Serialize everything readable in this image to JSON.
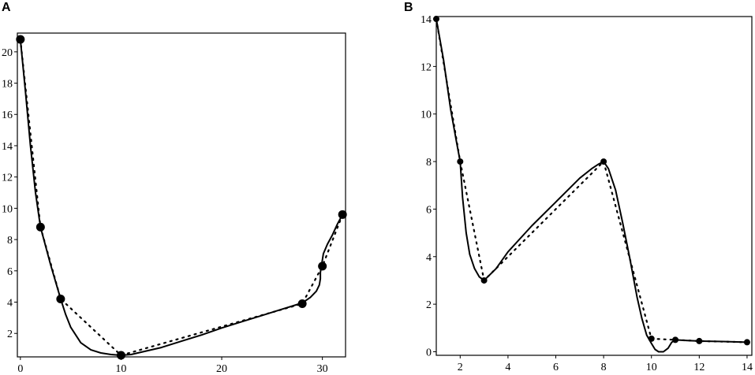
{
  "figure": {
    "panel_labels": [
      "A",
      "B"
    ]
  },
  "colors": {
    "ink": "#000000",
    "background": "#ffffff"
  },
  "chart_data": [
    {
      "id": "A",
      "type": "line",
      "title": "",
      "xlabel": "",
      "ylabel": "",
      "xlim": [
        -0.3,
        32.3
      ],
      "ylim": [
        0.5,
        21.2
      ],
      "xticks": [
        0,
        10,
        20,
        30
      ],
      "yticks": [
        2,
        4,
        6,
        8,
        10,
        12,
        14,
        16,
        18,
        20
      ],
      "xtick_labels": [
        "0",
        "10",
        "20",
        "30"
      ],
      "ytick_labels": [
        "2",
        "4",
        "6",
        "8",
        "10",
        "12",
        "14",
        "16",
        "18",
        "20"
      ],
      "grid": false,
      "points": {
        "x": [
          0,
          2,
          4,
          10,
          28,
          30,
          32
        ],
        "y": [
          20.8,
          8.8,
          4.2,
          0.6,
          3.9,
          6.3,
          9.6
        ]
      },
      "series": [
        {
          "style": "dotted",
          "x": [
            0,
            2,
            4,
            10,
            28,
            30,
            32
          ],
          "y": [
            20.8,
            8.8,
            4.2,
            0.6,
            3.9,
            6.3,
            9.6
          ]
        },
        {
          "style": "solid",
          "x": [
            0,
            0.5,
            1,
            1.5,
            2,
            2.5,
            3,
            3.5,
            4,
            4.5,
            5,
            6,
            7,
            8,
            9,
            10,
            11,
            12,
            14,
            16,
            18,
            20,
            22,
            24,
            26,
            27,
            28,
            28.8,
            29.4,
            29.7,
            29.8,
            29.8,
            29.9,
            30.1,
            30.5,
            31,
            31.5,
            32
          ],
          "y": [
            20.8,
            17.5,
            14.0,
            11.0,
            8.8,
            7.6,
            6.4,
            5.3,
            4.2,
            3.2,
            2.4,
            1.4,
            0.95,
            0.75,
            0.65,
            0.6,
            0.65,
            0.8,
            1.1,
            1.5,
            1.9,
            2.35,
            2.75,
            3.15,
            3.55,
            3.75,
            3.95,
            4.3,
            4.7,
            5.1,
            5.5,
            5.9,
            6.3,
            7.1,
            7.7,
            8.3,
            9.0,
            9.6
          ]
        }
      ]
    },
    {
      "id": "B",
      "type": "line",
      "title": "",
      "xlabel": "",
      "ylabel": "",
      "xlim": [
        1,
        14.2
      ],
      "ylim": [
        -0.15,
        14.1
      ],
      "xticks": [
        2,
        4,
        6,
        8,
        10,
        12,
        14
      ],
      "yticks": [
        0,
        2,
        4,
        6,
        8,
        10,
        12,
        14
      ],
      "xtick_labels": [
        "2",
        "4",
        "6",
        "8",
        "10",
        "12",
        "14"
      ],
      "ytick_labels": [
        "0",
        "2",
        "4",
        "6",
        "8",
        "10",
        "12",
        "14"
      ],
      "grid": false,
      "points": {
        "x": [
          1,
          2,
          3,
          8,
          10,
          11,
          12,
          14
        ],
        "y": [
          14,
          8,
          3,
          8,
          0.55,
          0.5,
          0.45,
          0.4
        ]
      },
      "series": [
        {
          "style": "dotted",
          "x": [
            1,
            2,
            3,
            8,
            10,
            11,
            12,
            14
          ],
          "y": [
            14,
            8,
            3,
            8,
            0.55,
            0.5,
            0.45,
            0.4
          ]
        },
        {
          "style": "solid",
          "x": [
            1,
            1.3,
            1.6,
            1.85,
            2,
            2.1,
            2.25,
            2.4,
            2.6,
            2.8,
            3,
            3.5,
            4,
            5,
            6,
            7,
            7.5,
            7.8,
            8,
            8.2,
            8.5,
            8.8,
            9.1,
            9.4,
            9.6,
            9.8,
            10,
            10.15,
            10.3,
            10.5,
            10.7,
            10.85,
            11,
            11.5,
            12,
            13,
            14
          ],
          "y": [
            14,
            12.3,
            10.2,
            8.8,
            8,
            6.5,
            5.0,
            4.1,
            3.5,
            3.15,
            3,
            3.5,
            4.2,
            5.3,
            6.3,
            7.3,
            7.7,
            7.9,
            8,
            7.7,
            6.8,
            5.4,
            3.9,
            2.3,
            1.4,
            0.7,
            0.35,
            0.1,
            0.0,
            0.0,
            0.15,
            0.4,
            0.5,
            0.47,
            0.45,
            0.43,
            0.4
          ]
        }
      ]
    }
  ]
}
